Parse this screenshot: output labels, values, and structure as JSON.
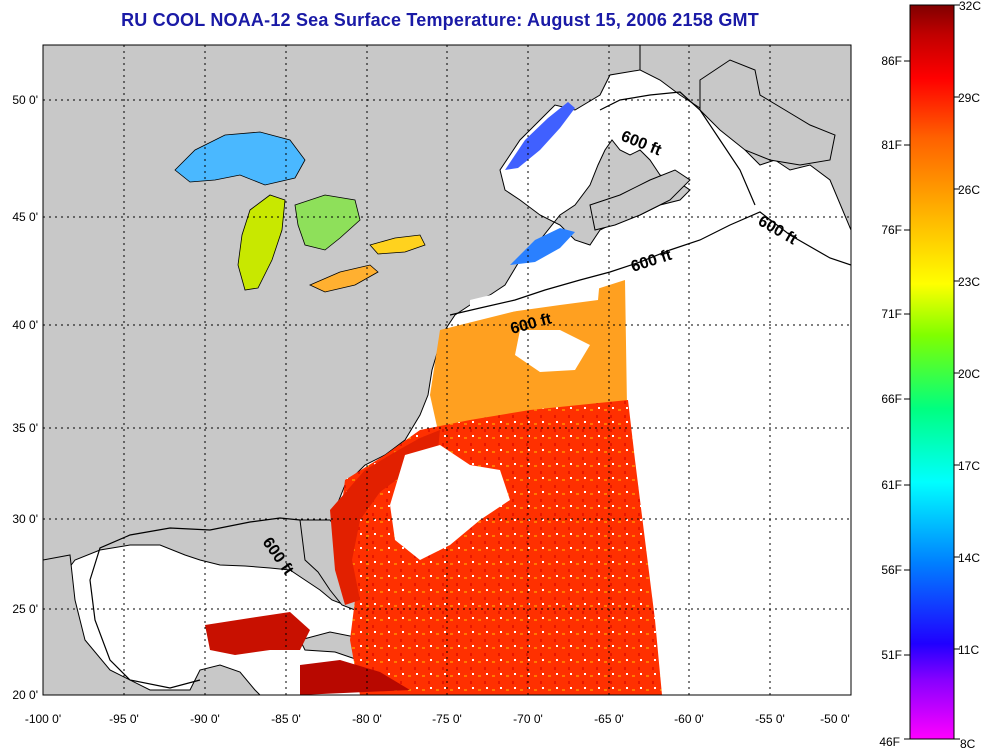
{
  "title": "RU COOL  NOAA-12  Sea Surface Temperature:  August 15, 2006 2158 GMT",
  "map": {
    "lon_ticks": [
      "-100 0'",
      "-95 0'",
      "-90 0'",
      "-85 0'",
      "-80 0'",
      "-75 0'",
      "-70 0'",
      "-65 0'",
      "-60 0'",
      "-55 0'",
      "-50 0'"
    ],
    "lat_ticks": [
      "20 0'",
      "25 0'",
      "30 0'",
      "35 0'",
      "40 0'",
      "45 0'",
      "50 0'"
    ],
    "lon_range": [
      -100,
      -50
    ],
    "lat_range": [
      20,
      52.5
    ],
    "contour_label": "600 ft",
    "colors": {
      "land": "#c8c8c8",
      "no_data": "#ffffff",
      "grid": "#000000"
    }
  },
  "colorbar": {
    "celsius_labels": [
      "32C",
      "29C",
      "26C",
      "23C",
      "20C",
      "17C",
      "14C",
      "11C",
      "8C"
    ],
    "fahrenheit_labels": [
      "86F",
      "81F",
      "76F",
      "71F",
      "66F",
      "61F",
      "56F",
      "51F",
      "46F"
    ],
    "gradient": [
      "#ff00ff",
      "#8800ff",
      "#0000ff",
      "#0080ff",
      "#00ffff",
      "#00ff80",
      "#80ff00",
      "#ffff00",
      "#ffb000",
      "#ff6000",
      "#ff0000",
      "#c00000",
      "#800000"
    ]
  }
}
